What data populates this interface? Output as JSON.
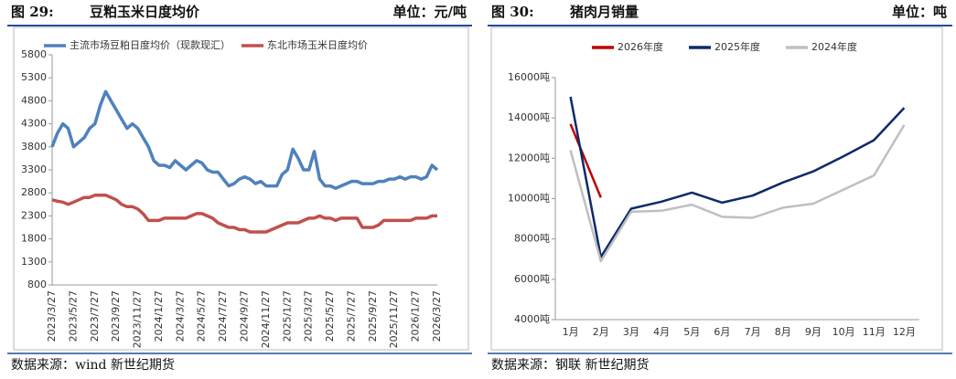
{
  "chart_data": [
    {
      "type": "line",
      "figure_label": "图 29:",
      "title": "豆粕玉米日度均价",
      "unit": "单位：元/吨",
      "source": "数据来源：wind   新世纪期货",
      "categories": [
        "2023/3/27",
        null,
        null,
        null,
        "2023/5/27",
        null,
        null,
        null,
        "2023/7/27",
        null,
        null,
        null,
        "2023/9/27",
        null,
        null,
        null,
        "2023/11/27",
        null,
        null,
        null,
        "2024/1/27",
        null,
        null,
        null,
        "2024/3/27",
        null,
        null,
        null,
        "2024/5/27",
        null,
        null,
        null,
        "2024/7/27",
        null,
        null,
        null,
        "2024/9/27",
        null,
        null,
        null,
        "2024/11/27",
        null,
        null,
        null,
        "2025/1/27",
        null,
        null,
        null,
        "2025/3/27",
        null,
        null,
        null,
        "2025/5/27",
        null,
        null,
        null,
        "2025/7/27",
        null,
        null,
        null,
        "2025/9/27",
        null,
        null,
        null,
        "2025/11/27",
        null,
        null,
        null,
        "2026/1/27",
        null,
        null,
        null,
        "2026/3/27"
      ],
      "series": [
        {
          "name": "主流市场豆粕日度均价（现款现汇）",
          "color": "#4f81bd",
          "values": [
            3800,
            4100,
            4300,
            4200,
            3800,
            3900,
            4000,
            4200,
            4300,
            4700,
            5000,
            4800,
            4600,
            4400,
            4200,
            4300,
            4200,
            4000,
            3800,
            3500,
            3400,
            3400,
            3350,
            3500,
            3400,
            3300,
            3400,
            3500,
            3450,
            3300,
            3250,
            3250,
            3100,
            2950,
            3000,
            3100,
            3150,
            3100,
            3000,
            3050,
            2950,
            2950,
            2950,
            3200,
            3300,
            3750,
            3550,
            3300,
            3300,
            3700,
            3100,
            2950,
            2950,
            2900,
            2950,
            3000,
            3050,
            3050,
            3000,
            3000,
            3000,
            3050,
            3050,
            3100,
            3100,
            3150,
            3100,
            3150,
            3150,
            3100,
            3150,
            3400,
            3300
          ]
        },
        {
          "name": "东北市场玉米日度均价",
          "color": "#c0504d",
          "values": [
            2650,
            2620,
            2600,
            2550,
            2600,
            2650,
            2700,
            2700,
            2750,
            2750,
            2750,
            2700,
            2650,
            2550,
            2500,
            2500,
            2450,
            2350,
            2200,
            2200,
            2200,
            2250,
            2250,
            2250,
            2250,
            2250,
            2300,
            2350,
            2350,
            2300,
            2250,
            2150,
            2100,
            2050,
            2050,
            2000,
            2000,
            1950,
            1950,
            1950,
            1950,
            2000,
            2050,
            2100,
            2150,
            2150,
            2150,
            2200,
            2250,
            2250,
            2300,
            2250,
            2250,
            2200,
            2250,
            2250,
            2250,
            2250,
            2050,
            2050,
            2050,
            2100,
            2200,
            2200,
            2200,
            2200,
            2200,
            2200,
            2250,
            2250,
            2250,
            2300,
            2300
          ]
        }
      ],
      "ylim": [
        800,
        5800
      ],
      "yticks": [
        800,
        1300,
        1800,
        2300,
        2800,
        3300,
        3800,
        4300,
        4800,
        5300,
        5800
      ]
    },
    {
      "type": "line",
      "figure_label": "图 30:",
      "title": "猪肉月销量",
      "unit": "单位：吨",
      "source": "数据来源：钢联   新世纪期货",
      "categories": [
        "1月",
        "2月",
        "3月",
        "4月",
        "5月",
        "6月",
        "7月",
        "8月",
        "9月",
        "10月",
        "11月",
        "12月"
      ],
      "series": [
        {
          "name": "2026年度",
          "color": "#c00000",
          "values": [
            13700,
            10050,
            null,
            null,
            null,
            null,
            null,
            null,
            null,
            null,
            null,
            null
          ]
        },
        {
          "name": "2025年度",
          "color": "#0d2a6b",
          "values": [
            15050,
            7100,
            9500,
            9850,
            10300,
            9800,
            10150,
            10800,
            11350,
            12100,
            12900,
            14500
          ]
        },
        {
          "name": "2024年度",
          "color": "#bfbfbf",
          "values": [
            12400,
            6900,
            9350,
            9400,
            9700,
            9100,
            9050,
            9550,
            9750,
            10450,
            11150,
            13650
          ]
        }
      ],
      "ylim": [
        4000,
        16000
      ],
      "yticks": [
        {
          "value": 4000,
          "label": "4000吨"
        },
        {
          "value": 6000,
          "label": "6000吨"
        },
        {
          "value": 8000,
          "label": "8000吨"
        },
        {
          "value": 10000,
          "label": "10000吨"
        },
        {
          "value": 12000,
          "label": "12000吨"
        },
        {
          "value": 14000,
          "label": "14000吨"
        },
        {
          "value": 16000,
          "label": "16000吨"
        }
      ]
    }
  ]
}
